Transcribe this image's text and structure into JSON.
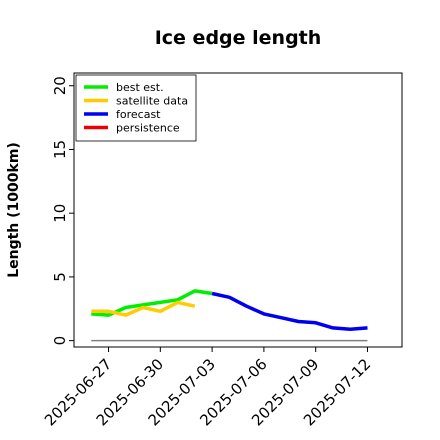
{
  "chart_data": {
    "type": "line",
    "title": "Ice edge length",
    "ylabel": "Length (1000km)",
    "xlabel": "",
    "ylim": [
      -0.5,
      21
    ],
    "yticks": [
      0,
      5,
      10,
      15,
      20
    ],
    "xlim": [
      "2025-06-25",
      "2025-07-14"
    ],
    "xticks": [
      "2025-06-27",
      "2025-06-30",
      "2025-07-03",
      "2025-07-06",
      "2025-07-09",
      "2025-07-12"
    ],
    "highlight_tick": "2025-07-03",
    "highlight_color": "#1f8b1f",
    "grid": false,
    "legend_position": "top-left",
    "reference_line": {
      "y": 0,
      "x_start": "2025-06-26",
      "x_end": "2025-07-12",
      "color": "#808080"
    },
    "series": [
      {
        "name": "best est.",
        "color": "#00ee00",
        "x": [
          "2025-06-26",
          "2025-06-27",
          "2025-06-28",
          "2025-06-29",
          "2025-06-30",
          "2025-07-01",
          "2025-07-02",
          "2025-07-03"
        ],
        "y": [
          2.1,
          2.0,
          2.6,
          2.8,
          3.0,
          3.2,
          3.9,
          3.7
        ]
      },
      {
        "name": "satellite data",
        "color": "#ffcc00",
        "x": [
          "2025-06-26",
          "2025-06-27",
          "2025-06-28",
          "2025-06-29",
          "2025-06-30",
          "2025-07-01",
          "2025-07-02"
        ],
        "y": [
          2.3,
          2.3,
          2.0,
          2.6,
          2.3,
          3.0,
          2.7
        ]
      },
      {
        "name": "forecast",
        "color": "#0000ee",
        "x": [
          "2025-07-03",
          "2025-07-04",
          "2025-07-05",
          "2025-07-06",
          "2025-07-07",
          "2025-07-08",
          "2025-07-09",
          "2025-07-10",
          "2025-07-11",
          "2025-07-12"
        ],
        "y": [
          3.7,
          3.4,
          2.7,
          2.1,
          1.8,
          1.5,
          1.4,
          1.0,
          0.9,
          1.0
        ]
      },
      {
        "name": "persistence",
        "color": "#ee0000",
        "x": [],
        "y": []
      }
    ]
  }
}
